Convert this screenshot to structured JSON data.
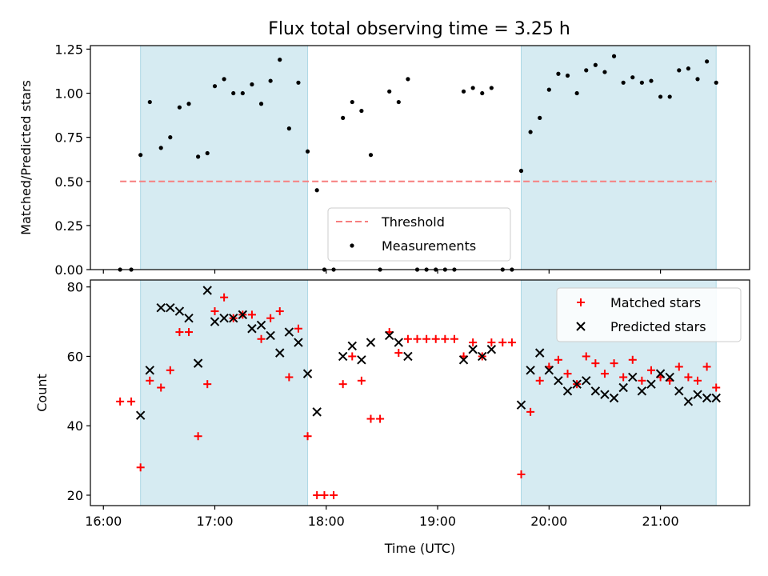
{
  "figure": {
    "title": "Flux total observing time = 3.25 h"
  },
  "chart_data": [
    {
      "type": "scatter",
      "panel": "top",
      "ylabel": "Matched/Predicted stars",
      "xlim": [
        "15:53",
        "21:48"
      ],
      "ylim": [
        0,
        1.27
      ],
      "yticks": [
        0,
        0.25,
        0.5,
        0.75,
        1.0,
        1.25
      ],
      "ytick_labels": [
        "0.00",
        "0.25",
        "0.50",
        "0.75",
        "1.00",
        "1.25"
      ],
      "legend_position": "lower center",
      "shaded_spans": [
        [
          "16:20",
          "17:50"
        ],
        [
          "19:45",
          "21:30"
        ]
      ],
      "threshold": {
        "name": "Threshold",
        "value": 0.5,
        "x_start": "16:09",
        "x_end": "21:30",
        "color": "#f77f7f",
        "style": "dashed"
      },
      "series": [
        {
          "name": "Measurements",
          "color": "#000000",
          "marker": "dot",
          "points": [
            [
              "16:09",
              0.0
            ],
            [
              "16:15",
              0.0
            ],
            [
              "16:20",
              0.65
            ],
            [
              "16:25",
              0.95
            ],
            [
              "16:31",
              0.69
            ],
            [
              "16:36",
              0.75
            ],
            [
              "16:41",
              0.92
            ],
            [
              "16:46",
              0.94
            ],
            [
              "16:51",
              0.64
            ],
            [
              "16:56",
              0.66
            ],
            [
              "17:00",
              1.04
            ],
            [
              "17:05",
              1.08
            ],
            [
              "17:10",
              1.0
            ],
            [
              "17:15",
              1.0
            ],
            [
              "17:20",
              1.05
            ],
            [
              "17:25",
              0.94
            ],
            [
              "17:30",
              1.07
            ],
            [
              "17:35",
              1.19
            ],
            [
              "17:40",
              0.8
            ],
            [
              "17:45",
              1.06
            ],
            [
              "17:50",
              0.67
            ],
            [
              "17:55",
              0.45
            ],
            [
              "17:59",
              0.0
            ],
            [
              "18:04",
              0.0
            ],
            [
              "18:09",
              0.86
            ],
            [
              "18:14",
              0.95
            ],
            [
              "18:19",
              0.9
            ],
            [
              "18:24",
              0.65
            ],
            [
              "18:29",
              0.0
            ],
            [
              "18:34",
              1.01
            ],
            [
              "18:39",
              0.95
            ],
            [
              "18:44",
              1.08
            ],
            [
              "18:49",
              0.0
            ],
            [
              "18:54",
              0.0
            ],
            [
              "18:59",
              0.0
            ],
            [
              "19:04",
              0.0
            ],
            [
              "19:09",
              0.0
            ],
            [
              "19:14",
              1.01
            ],
            [
              "19:19",
              1.03
            ],
            [
              "19:24",
              1.0
            ],
            [
              "19:29",
              1.03
            ],
            [
              "19:35",
              0.0
            ],
            [
              "19:40",
              0.0
            ],
            [
              "19:45",
              0.56
            ],
            [
              "19:50",
              0.78
            ],
            [
              "19:55",
              0.86
            ],
            [
              "20:00",
              1.02
            ],
            [
              "20:05",
              1.11
            ],
            [
              "20:10",
              1.1
            ],
            [
              "20:15",
              1.0
            ],
            [
              "20:20",
              1.13
            ],
            [
              "20:25",
              1.16
            ],
            [
              "20:30",
              1.12
            ],
            [
              "20:35",
              1.21
            ],
            [
              "20:40",
              1.06
            ],
            [
              "20:45",
              1.09
            ],
            [
              "20:50",
              1.06
            ],
            [
              "20:55",
              1.07
            ],
            [
              "21:00",
              0.98
            ],
            [
              "21:05",
              0.98
            ],
            [
              "21:10",
              1.13
            ],
            [
              "21:15",
              1.14
            ],
            [
              "21:20",
              1.08
            ],
            [
              "21:25",
              1.18
            ],
            [
              "21:30",
              1.06
            ]
          ]
        }
      ]
    },
    {
      "type": "scatter",
      "panel": "bottom",
      "xlabel": "Time (UTC)",
      "ylabel": "Count",
      "xlim": [
        "15:53",
        "21:48"
      ],
      "ylim": [
        17,
        82
      ],
      "yticks": [
        20,
        40,
        60,
        80
      ],
      "ytick_labels": [
        "20",
        "40",
        "60",
        "80"
      ],
      "xticks": [
        "16:00",
        "17:00",
        "18:00",
        "19:00",
        "20:00",
        "21:00"
      ],
      "legend_position": "upper right",
      "shaded_spans": [
        [
          "16:20",
          "17:50"
        ],
        [
          "19:45",
          "21:30"
        ]
      ],
      "series": [
        {
          "name": "Matched stars",
          "color": "#ff0000",
          "marker": "plus",
          "points": [
            [
              "16:09",
              47
            ],
            [
              "16:15",
              47
            ],
            [
              "16:20",
              28
            ],
            [
              "16:25",
              53
            ],
            [
              "16:31",
              51
            ],
            [
              "16:36",
              56
            ],
            [
              "16:41",
              67
            ],
            [
              "16:46",
              67
            ],
            [
              "16:51",
              37
            ],
            [
              "16:56",
              52
            ],
            [
              "17:00",
              73
            ],
            [
              "17:05",
              77
            ],
            [
              "17:10",
              71
            ],
            [
              "17:15",
              72
            ],
            [
              "17:20",
              72
            ],
            [
              "17:25",
              65
            ],
            [
              "17:30",
              71
            ],
            [
              "17:35",
              73
            ],
            [
              "17:40",
              54
            ],
            [
              "17:45",
              68
            ],
            [
              "17:50",
              37
            ],
            [
              "17:55",
              20
            ],
            [
              "17:59",
              20
            ],
            [
              "18:04",
              20
            ],
            [
              "18:09",
              52
            ],
            [
              "18:14",
              60
            ],
            [
              "18:19",
              53
            ],
            [
              "18:24",
              42
            ],
            [
              "18:29",
              42
            ],
            [
              "18:34",
              67
            ],
            [
              "18:39",
              61
            ],
            [
              "18:44",
              65
            ],
            [
              "18:49",
              65
            ],
            [
              "18:54",
              65
            ],
            [
              "18:59",
              65
            ],
            [
              "19:04",
              65
            ],
            [
              "19:09",
              65
            ],
            [
              "19:14",
              60
            ],
            [
              "19:19",
              64
            ],
            [
              "19:24",
              60
            ],
            [
              "19:29",
              64
            ],
            [
              "19:35",
              64
            ],
            [
              "19:40",
              64
            ],
            [
              "19:45",
              26
            ],
            [
              "19:50",
              44
            ],
            [
              "19:55",
              53
            ],
            [
              "20:00",
              57
            ],
            [
              "20:05",
              59
            ],
            [
              "20:10",
              55
            ],
            [
              "20:15",
              52
            ],
            [
              "20:20",
              60
            ],
            [
              "20:25",
              58
            ],
            [
              "20:30",
              55
            ],
            [
              "20:35",
              58
            ],
            [
              "20:40",
              54
            ],
            [
              "20:45",
              59
            ],
            [
              "20:50",
              53
            ],
            [
              "20:55",
              56
            ],
            [
              "21:00",
              54
            ],
            [
              "21:05",
              53
            ],
            [
              "21:10",
              57
            ],
            [
              "21:15",
              54
            ],
            [
              "21:20",
              53
            ],
            [
              "21:25",
              57
            ],
            [
              "21:30",
              51
            ]
          ]
        },
        {
          "name": "Predicted stars",
          "color": "#000000",
          "marker": "x",
          "points": [
            [
              "16:20",
              43
            ],
            [
              "16:25",
              56
            ],
            [
              "16:31",
              74
            ],
            [
              "16:36",
              74
            ],
            [
              "16:41",
              73
            ],
            [
              "16:46",
              71
            ],
            [
              "16:51",
              58
            ],
            [
              "16:56",
              79
            ],
            [
              "17:00",
              70
            ],
            [
              "17:05",
              71
            ],
            [
              "17:10",
              71
            ],
            [
              "17:15",
              72
            ],
            [
              "17:20",
              68
            ],
            [
              "17:25",
              69
            ],
            [
              "17:30",
              66
            ],
            [
              "17:35",
              61
            ],
            [
              "17:40",
              67
            ],
            [
              "17:45",
              64
            ],
            [
              "17:50",
              55
            ],
            [
              "17:55",
              44
            ],
            [
              "18:09",
              60
            ],
            [
              "18:14",
              63
            ],
            [
              "18:19",
              59
            ],
            [
              "18:24",
              64
            ],
            [
              "18:34",
              66
            ],
            [
              "18:39",
              64
            ],
            [
              "18:44",
              60
            ],
            [
              "19:14",
              59
            ],
            [
              "19:19",
              62
            ],
            [
              "19:24",
              60
            ],
            [
              "19:29",
              62
            ],
            [
              "19:45",
              46
            ],
            [
              "19:50",
              56
            ],
            [
              "19:55",
              61
            ],
            [
              "20:00",
              56
            ],
            [
              "20:05",
              53
            ],
            [
              "20:10",
              50
            ],
            [
              "20:15",
              52
            ],
            [
              "20:20",
              53
            ],
            [
              "20:25",
              50
            ],
            [
              "20:30",
              49
            ],
            [
              "20:35",
              48
            ],
            [
              "20:40",
              51
            ],
            [
              "20:45",
              54
            ],
            [
              "20:50",
              50
            ],
            [
              "20:55",
              52
            ],
            [
              "21:00",
              55
            ],
            [
              "21:05",
              54
            ],
            [
              "21:10",
              50
            ],
            [
              "21:15",
              47
            ],
            [
              "21:20",
              49
            ],
            [
              "21:25",
              48
            ],
            [
              "21:30",
              48
            ]
          ]
        }
      ]
    }
  ],
  "colors": {
    "span_fill": "#add8e6",
    "axes_edge": "#000000",
    "legend_edge": "#cccccc"
  }
}
